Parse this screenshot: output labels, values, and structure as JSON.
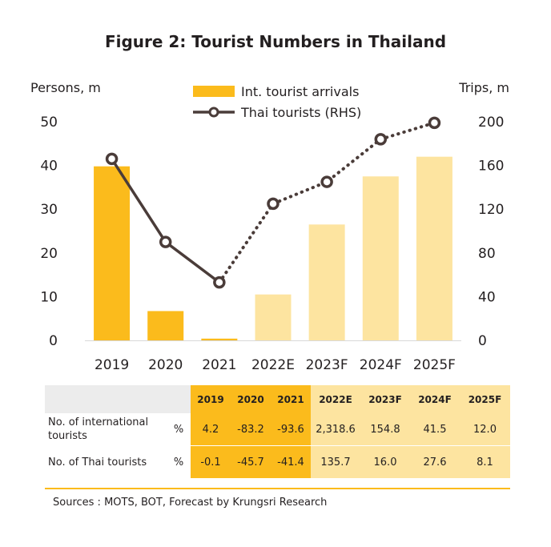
{
  "figure": {
    "title": "Figure 2: Tourist Numbers in Thailand",
    "sources": "Sources : MOTS,  BOT, Forecast by Krungsri Research"
  },
  "chart_data": {
    "type": "bar",
    "title": "Figure 2: Tourist Numbers in Thailand",
    "categories": [
      "2019",
      "2020",
      "2021",
      "2022E",
      "2023F",
      "2024F",
      "2025F"
    ],
    "y_left": {
      "label": "Persons, m",
      "ylim": [
        0,
        50
      ],
      "ticks": [
        "0",
        "10",
        "20",
        "30",
        "40",
        "50"
      ]
    },
    "y_right": {
      "label": "Trips, m",
      "ylim": [
        0,
        200
      ],
      "ticks": [
        "0",
        "40",
        "80",
        "120",
        "160",
        "200"
      ]
    },
    "series": [
      {
        "name": "Int. tourist arrivals",
        "type": "bar",
        "axis": "left",
        "values": [
          39.8,
          6.7,
          0.4,
          10.5,
          26.5,
          37.5,
          42.0
        ],
        "colors": [
          "#fbbb1c",
          "#fbbb1c",
          "#fbbb1c",
          "#fde4a0",
          "#fde4a0",
          "#fde4a0",
          "#fde4a0"
        ]
      },
      {
        "name": "Thai tourists (RHS)",
        "type": "line",
        "axis": "right",
        "values": [
          166,
          90,
          53,
          125,
          145,
          184,
          199
        ],
        "color": "#4a3c39",
        "solid_until_index": 2
      }
    ],
    "legend_position": "top-center",
    "grid": false
  },
  "table": {
    "headers": [
      "2019",
      "2020",
      "2021",
      "2022E",
      "2023F",
      "2024F",
      "2025F"
    ],
    "rows": [
      {
        "label": "No. of international tourists",
        "unit": "%",
        "values": [
          "4.2",
          "-83.2",
          "-93.6",
          "2,318.6",
          "154.8",
          "41.5",
          "12.0"
        ]
      },
      {
        "label": "No. of Thai tourists",
        "unit": "%",
        "values": [
          "-0.1",
          "-45.7",
          "-41.4",
          "135.7",
          "16.0",
          "27.6",
          "8.1"
        ]
      }
    ]
  },
  "colors": {
    "historical": "#fbbb1c",
    "forecast": "#fde4a0",
    "line": "#4a3c39",
    "label_bg": "#ececec"
  }
}
